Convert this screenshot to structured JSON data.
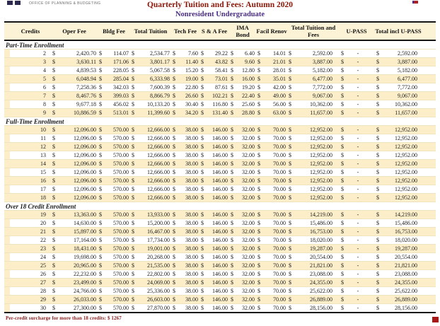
{
  "header": {
    "logo_text": "OFFICE OF PLANNING & BUDGETING",
    "title": "Quarterly Tuition and Fees: Autumn 2020",
    "subtitle": "Nonresident Undergraduate"
  },
  "table": {
    "currency_symbol": "$",
    "columns": [
      "Credits",
      "Oper Fee",
      "Bldg Fee",
      "Total Tuition",
      "Tech Fee",
      "S & A Fee",
      "IMA Bond",
      "Facil Renov",
      "Total Tuition and Fees",
      "U-PASS",
      "Total incl U-PASS"
    ],
    "sections": [
      {
        "label": "Part-Time Enrollment",
        "rows": [
          {
            "credits": "2",
            "values": [
              "2,420.70",
              "114.07",
              "2,534.77",
              "7.60",
              "29.22",
              "6.40",
              "14.01",
              "2,592.00",
              "-",
              "2,592.00"
            ]
          },
          {
            "credits": "3",
            "values": [
              "3,630.11",
              "171.06",
              "3,801.17",
              "11.40",
              "43.82",
              "9.60",
              "21.01",
              "3,887.00",
              "-",
              "3,887.00"
            ]
          },
          {
            "credits": "4",
            "values": [
              "4,839.53",
              "228.05",
              "5,067.58",
              "15.20",
              "58.41",
              "12.80",
              "28.01",
              "5,182.00",
              "-",
              "5,182.00"
            ]
          },
          {
            "credits": "5",
            "values": [
              "6,048.94",
              "285.04",
              "6,333.98",
              "19.00",
              "73.01",
              "16.00",
              "35.01",
              "6,477.00",
              "-",
              "6,477.00"
            ]
          },
          {
            "credits": "6",
            "values": [
              "7,258.36",
              "342.03",
              "7,600.39",
              "22.80",
              "87.61",
              "19.20",
              "42.00",
              "7,772.00",
              "-",
              "7,772.00"
            ]
          },
          {
            "credits": "7",
            "values": [
              "8,467.76",
              "399.03",
              "8,866.79",
              "26.60",
              "102.21",
              "22.40",
              "49.00",
              "9,067.00",
              "-",
              "9,067.00"
            ]
          },
          {
            "credits": "8",
            "values": [
              "9,677.18",
              "456.02",
              "10,133.20",
              "30.40",
              "116.80",
              "25.60",
              "56.00",
              "10,362.00",
              "-",
              "10,362.00"
            ]
          },
          {
            "credits": "9",
            "values": [
              "10,886.59",
              "513.01",
              "11,399.60",
              "34.20",
              "131.40",
              "28.80",
              "63.00",
              "11,657.00",
              "-",
              "11,657.00"
            ]
          }
        ]
      },
      {
        "label": "Full-Time Enrollment",
        "rows": [
          {
            "credits": "10",
            "values": [
              "12,096.00",
              "570.00",
              "12,666.00",
              "38.00",
              "146.00",
              "32.00",
              "70.00",
              "12,952.00",
              "-",
              "12,952.00"
            ]
          },
          {
            "credits": "11",
            "values": [
              "12,096.00",
              "570.00",
              "12,666.00",
              "38.00",
              "146.00",
              "32.00",
              "70.00",
              "12,952.00",
              "-",
              "12,952.00"
            ]
          },
          {
            "credits": "12",
            "values": [
              "12,096.00",
              "570.00",
              "12,666.00",
              "38.00",
              "146.00",
              "32.00",
              "70.00",
              "12,952.00",
              "-",
              "12,952.00"
            ]
          },
          {
            "credits": "13",
            "values": [
              "12,096.00",
              "570.00",
              "12,666.00",
              "38.00",
              "146.00",
              "32.00",
              "70.00",
              "12,952.00",
              "-",
              "12,952.00"
            ]
          },
          {
            "credits": "14",
            "values": [
              "12,096.00",
              "570.00",
              "12,666.00",
              "38.00",
              "146.00",
              "32.00",
              "70.00",
              "12,952.00",
              "-",
              "12,952.00"
            ]
          },
          {
            "credits": "15",
            "values": [
              "12,096.00",
              "570.00",
              "12,666.00",
              "38.00",
              "146.00",
              "32.00",
              "70.00",
              "12,952.00",
              "-",
              "12,952.00"
            ]
          },
          {
            "credits": "16",
            "values": [
              "12,096.00",
              "570.00",
              "12,666.00",
              "38.00",
              "146.00",
              "32.00",
              "70.00",
              "12,952.00",
              "-",
              "12,952.00"
            ]
          },
          {
            "credits": "17",
            "values": [
              "12,096.00",
              "570.00",
              "12,666.00",
              "38.00",
              "146.00",
              "32.00",
              "70.00",
              "12,952.00",
              "-",
              "12,952.00"
            ]
          },
          {
            "credits": "18",
            "values": [
              "12,096.00",
              "570.00",
              "12,666.00",
              "38.00",
              "146.00",
              "32.00",
              "70.00",
              "12,952.00",
              "-",
              "12,952.00"
            ]
          }
        ]
      },
      {
        "label": "Over 18 Credit Enrollment",
        "rows": [
          {
            "credits": "19",
            "values": [
              "13,363.00",
              "570.00",
              "13,933.00",
              "38.00",
              "146.00",
              "32.00",
              "70.00",
              "14,219.00",
              "-",
              "14,219.00"
            ]
          },
          {
            "credits": "20",
            "values": [
              "14,630.00",
              "570.00",
              "15,200.00",
              "38.00",
              "146.00",
              "32.00",
              "70.00",
              "15,486.00",
              "-",
              "15,486.00"
            ]
          },
          {
            "credits": "21",
            "values": [
              "15,897.00",
              "570.00",
              "16,467.00",
              "38.00",
              "146.00",
              "32.00",
              "70.00",
              "16,753.00",
              "-",
              "16,753.00"
            ]
          },
          {
            "credits": "22",
            "values": [
              "17,164.00",
              "570.00",
              "17,734.00",
              "38.00",
              "146.00",
              "32.00",
              "70.00",
              "18,020.00",
              "-",
              "18,020.00"
            ]
          },
          {
            "credits": "23",
            "values": [
              "18,431.00",
              "570.00",
              "19,001.00",
              "38.00",
              "146.00",
              "32.00",
              "70.00",
              "19,287.00",
              "-",
              "19,287.00"
            ]
          },
          {
            "credits": "24",
            "values": [
              "19,698.00",
              "570.00",
              "20,268.00",
              "38.00",
              "146.00",
              "32.00",
              "70.00",
              "20,554.00",
              "-",
              "20,554.00"
            ]
          },
          {
            "credits": "25",
            "values": [
              "20,965.00",
              "570.00",
              "21,535.00",
              "38.00",
              "146.00",
              "32.00",
              "70.00",
              "21,821.00",
              "-",
              "21,821.00"
            ]
          },
          {
            "credits": "26",
            "values": [
              "22,232.00",
              "570.00",
              "22,802.00",
              "38.00",
              "146.00",
              "32.00",
              "70.00",
              "23,088.00",
              "-",
              "23,088.00"
            ]
          },
          {
            "credits": "27",
            "values": [
              "23,499.00",
              "570.00",
              "24,069.00",
              "38.00",
              "146.00",
              "32.00",
              "70.00",
              "24,355.00",
              "-",
              "24,355.00"
            ]
          },
          {
            "credits": "28",
            "values": [
              "24,766.00",
              "570.00",
              "25,336.00",
              "38.00",
              "146.00",
              "32.00",
              "70.00",
              "25,622.00",
              "-",
              "25,622.00"
            ]
          },
          {
            "credits": "29",
            "values": [
              "26,033.00",
              "570.00",
              "26,603.00",
              "38.00",
              "146.00",
              "32.00",
              "70.00",
              "26,889.00",
              "-",
              "26,889.00"
            ]
          },
          {
            "credits": "30",
            "values": [
              "27,300.00",
              "570.00",
              "27,870.00",
              "38.00",
              "146.00",
              "32.00",
              "70.00",
              "28,156.00",
              "-",
              "28,156.00"
            ]
          }
        ]
      }
    ]
  },
  "footnote": "Per-credit surcharge for more than 18 credits: $ 1267",
  "colors": {
    "row_highlight": "#fbeec8",
    "header_bg": "#fcf3d6",
    "title": "#8b1507",
    "subtitle": "#4b2e83",
    "footnote": "#8b1a1a",
    "border_dark": "#151515"
  }
}
